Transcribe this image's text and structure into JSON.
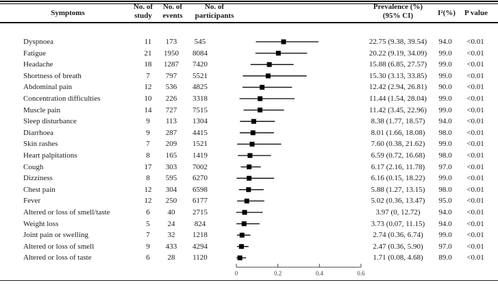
{
  "header": {
    "symptoms": "Symptoms",
    "study_l1": "No. of",
    "study_l2": "study",
    "events_l1": "No. of",
    "events_l2": "events",
    "participants_l1": "No. of",
    "participants_l2": "participants",
    "prevalence_l1": "Prevalence (%)",
    "prevalence_l2": "(95% CI)",
    "i2": "I²(%)",
    "p_value": "P value"
  },
  "colors": {
    "text": "#1a1a1a",
    "rule": "#000000",
    "ci_line": "#000000",
    "marker": "#000000",
    "axis": "#444444"
  },
  "chart_data": {
    "type": "forest",
    "title": "",
    "xlabel": "",
    "axis": {
      "xlim": [
        0,
        0.6
      ],
      "tick_values": [
        0,
        0.2,
        0.4,
        0.6
      ],
      "tick_labels": [
        "0",
        "0.2",
        "0.4",
        "0.6"
      ],
      "units": "proportion"
    },
    "rows": [
      {
        "symptom": "Dyspnoea",
        "no_of_study": "11",
        "no_of_events": "173",
        "no_of_participants": "545",
        "prevalence_ci": "22.75 (9.38, 39.54)",
        "estimate": 22.75,
        "ci_low": 9.38,
        "ci_high": 39.54,
        "i2": "94.0",
        "p_value": "<0.01"
      },
      {
        "symptom": "Fatigue",
        "no_of_study": "21",
        "no_of_events": "1950",
        "no_of_participants": "8084",
        "prevalence_ci": "20.22 (9.19, 34.09)",
        "estimate": 20.22,
        "ci_low": 9.19,
        "ci_high": 34.09,
        "i2": "99.0",
        "p_value": "<0.01"
      },
      {
        "symptom": "Headache",
        "no_of_study": "18",
        "no_of_events": "1287",
        "no_of_participants": "7420",
        "prevalence_ci": "15.88 (6.85, 27.57)",
        "estimate": 15.88,
        "ci_low": 6.85,
        "ci_high": 27.57,
        "i2": "99.0",
        "p_value": "<0.01"
      },
      {
        "symptom": "Shortness of breath",
        "no_of_study": "7",
        "no_of_events": "797",
        "no_of_participants": "5521",
        "prevalence_ci": "15.30 (3.13, 33.85)",
        "estimate": 15.3,
        "ci_low": 3.13,
        "ci_high": 33.85,
        "i2": "99.0",
        "p_value": "<0.01"
      },
      {
        "symptom": "Abdominal pain",
        "no_of_study": "12",
        "no_of_events": "536",
        "no_of_participants": "4825",
        "prevalence_ci": "12.42 (2.94, 26.81)",
        "estimate": 12.42,
        "ci_low": 2.94,
        "ci_high": 26.81,
        "i2": "90.0",
        "p_value": "<0.01"
      },
      {
        "symptom": "Concentration difficulties",
        "no_of_study": "10",
        "no_of_events": "226",
        "no_of_participants": "3318",
        "prevalence_ci": "11.44 (1.54, 28.04)",
        "estimate": 11.44,
        "ci_low": 1.54,
        "ci_high": 28.04,
        "i2": "99.0",
        "p_value": "<0.01"
      },
      {
        "symptom": "Muscle pain",
        "no_of_study": "14",
        "no_of_events": "727",
        "no_of_participants": "7515",
        "prevalence_ci": "11.42 (3.45, 22.96)",
        "estimate": 11.42,
        "ci_low": 3.45,
        "ci_high": 22.96,
        "i2": "99.0",
        "p_value": "<0.01"
      },
      {
        "symptom": "Sleep disturbance",
        "no_of_study": "9",
        "no_of_events": "113",
        "no_of_participants": "1304",
        "prevalence_ci": "8.38 (1.77, 18.57)",
        "estimate": 8.38,
        "ci_low": 1.77,
        "ci_high": 18.57,
        "i2": "94.0",
        "p_value": "<0.01"
      },
      {
        "symptom": "Diarrhoea",
        "no_of_study": "9",
        "no_of_events": "287",
        "no_of_participants": "4415",
        "prevalence_ci": "8.01 (1.66, 18.08)",
        "estimate": 8.01,
        "ci_low": 1.66,
        "ci_high": 18.08,
        "i2": "98.0",
        "p_value": "<0.01"
      },
      {
        "symptom": "Skin rashes",
        "no_of_study": "7",
        "no_of_events": "209",
        "no_of_participants": "1521",
        "prevalence_ci": "7.60 (0.38, 21.62)",
        "estimate": 7.6,
        "ci_low": 0.38,
        "ci_high": 21.62,
        "i2": "99.0",
        "p_value": "<0.01"
      },
      {
        "symptom": "Heart palpitations",
        "no_of_study": "8",
        "no_of_events": "165",
        "no_of_participants": "1419",
        "prevalence_ci": "6.59 (0.72, 16.68)",
        "estimate": 6.59,
        "ci_low": 0.72,
        "ci_high": 16.68,
        "i2": "98.0",
        "p_value": "<0.01"
      },
      {
        "symptom": "Cough",
        "no_of_study": "17",
        "no_of_events": "303",
        "no_of_participants": "7002",
        "prevalence_ci": "6.17 (2.16, 11.78)",
        "estimate": 6.17,
        "ci_low": 2.16,
        "ci_high": 11.78,
        "i2": "97.0",
        "p_value": "<0.01"
      },
      {
        "symptom": "Dizziness",
        "no_of_study": "8",
        "no_of_events": "595",
        "no_of_participants": "6270",
        "prevalence_ci": "6.16 (0.15, 18.22)",
        "estimate": 6.16,
        "ci_low": 0.15,
        "ci_high": 18.22,
        "i2": "99.0",
        "p_value": "<0.01"
      },
      {
        "symptom": "Chest pain",
        "no_of_study": "12",
        "no_of_events": "304",
        "no_of_participants": "6598",
        "prevalence_ci": "5.88 (1.27, 13.15)",
        "estimate": 5.88,
        "ci_low": 1.27,
        "ci_high": 13.15,
        "i2": "98.0",
        "p_value": "<0.01"
      },
      {
        "symptom": "Fever",
        "no_of_study": "12",
        "no_of_events": "250",
        "no_of_participants": "6177",
        "prevalence_ci": "5.02 (0.36, 13.47)",
        "estimate": 5.02,
        "ci_low": 0.36,
        "ci_high": 13.47,
        "i2": "95.0",
        "p_value": "<0.01"
      },
      {
        "symptom": "Altered or loss of smell/taste",
        "no_of_study": "6",
        "no_of_events": "40",
        "no_of_participants": "2715",
        "prevalence_ci": "3.97 (0, 12.72)",
        "estimate": 3.97,
        "ci_low": 0,
        "ci_high": 12.72,
        "i2": "94.0",
        "p_value": "<0.01"
      },
      {
        "symptom": "Weight loss",
        "no_of_study": "5",
        "no_of_events": "24",
        "no_of_participants": "824",
        "prevalence_ci": "3.73 (0.07, 11.15)",
        "estimate": 3.73,
        "ci_low": 0.07,
        "ci_high": 11.15,
        "i2": "94.0",
        "p_value": "<0.01"
      },
      {
        "symptom": "Joint pain or swelling",
        "no_of_study": "7",
        "no_of_events": "32",
        "no_of_participants": "1218",
        "prevalence_ci": "2.74 (0.36, 6.74)",
        "estimate": 2.74,
        "ci_low": 0.36,
        "ci_high": 6.74,
        "i2": "99.0",
        "p_value": "<0.01"
      },
      {
        "symptom": "Altered or loss of smell",
        "no_of_study": "9",
        "no_of_events": "433",
        "no_of_participants": "4294",
        "prevalence_ci": "2.47 (0.36, 5.90)",
        "estimate": 2.47,
        "ci_low": 0.36,
        "ci_high": 5.9,
        "i2": "97.0",
        "p_value": "<0.01"
      },
      {
        "symptom": "Altered or loss of taste",
        "no_of_study": "6",
        "no_of_events": "28",
        "no_of_participants": "1120",
        "prevalence_ci": "1.71 (0.08, 4.68)",
        "estimate": 1.71,
        "ci_low": 0.08,
        "ci_high": 4.68,
        "i2": "89.0",
        "p_value": "<0.01"
      }
    ]
  }
}
